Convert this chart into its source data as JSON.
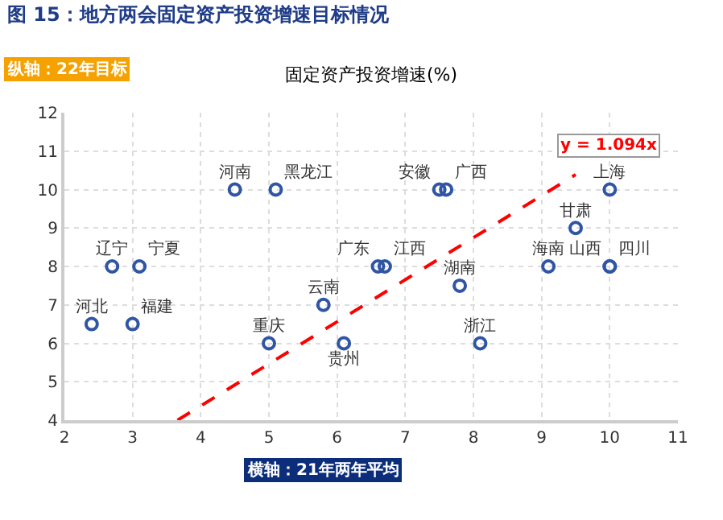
{
  "chart_data": {
    "type": "scatter",
    "title": "图 15：地方两会固定资产投资增速目标情况",
    "subtitle": "固定资产投资增速(%)",
    "xlabel": "横轴：21年两年平均",
    "ylabel": "纵轴：22年目标",
    "series": [
      {
        "color": "#2f55a4",
        "x": [
          2.7,
          3.1,
          4.5,
          5.1,
          2.4,
          3.0,
          5.0,
          5.8,
          6.1,
          6.6,
          6.7,
          7.5,
          7.6,
          7.8,
          8.1,
          9.1,
          9.5,
          10,
          10,
          10
        ],
        "values": [
          8,
          8,
          10,
          10,
          6.5,
          6.5,
          6,
          7,
          6,
          8,
          8,
          10,
          10,
          7.5,
          6,
          8,
          9,
          10,
          8,
          8
        ],
        "value_labels": [
          "辽宁",
          "宁夏",
          "河南",
          "黑龙江",
          "河北",
          "福建",
          "重庆",
          "云南",
          "贵州",
          "广东",
          "江西",
          "安徽",
          "广西",
          "湖南",
          "浙江",
          "海南",
          "甘肃",
          "上海",
          "山西",
          "四川"
        ]
      },
      {
        "type": "line",
        "color": "#ff0000",
        "line_style": "dashed",
        "marker": "none",
        "x": [
          3.66,
          9.5
        ],
        "values": [
          4.0,
          10.39
        ]
      }
    ],
    "annotations": [
      "y = 1.094x"
    ],
    "xlim": [
      2,
      11
    ],
    "xticks": [
      2,
      3,
      4,
      5,
      6,
      7,
      8,
      9,
      10,
      11
    ],
    "ylim": [
      4,
      12
    ],
    "yticks": [
      4,
      5,
      6,
      7,
      8,
      9,
      10,
      11,
      12
    ],
    "grid": true,
    "marker": "circle"
  }
}
